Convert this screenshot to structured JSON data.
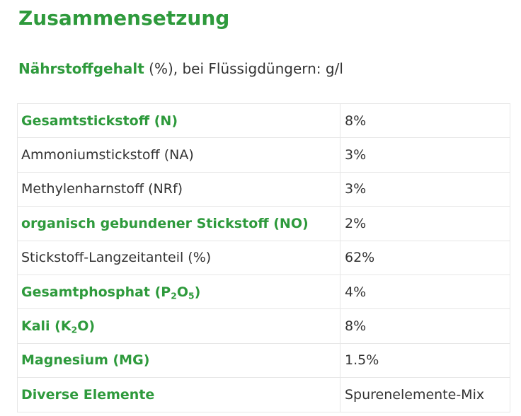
{
  "title": "Zusammensetzung",
  "subtitle": {
    "bold": "Nährstoffgehalt",
    "rest": " (%), bei Flüssigdüngern: g/l"
  },
  "rows": [
    {
      "label": "Gesamtstickstoff (N)",
      "value": "8%",
      "bold": true
    },
    {
      "label": "Ammoniumstickstoff (NA)",
      "value": "3%",
      "bold": false
    },
    {
      "label": "Methylenharnstoff (NRf)",
      "value": "3%",
      "bold": false
    },
    {
      "label": "organisch gebundener Stickstoff (NO)",
      "value": "2%",
      "bold": true
    },
    {
      "label": "Stickstoff-Langzeitanteil (%)",
      "value": "62%",
      "bold": false
    },
    {
      "label_parts": [
        "Gesamtphosphat (P",
        "2",
        "O",
        "5",
        ")"
      ],
      "value": "4%",
      "bold": true
    },
    {
      "label_parts": [
        "Kali (K",
        "2",
        "O)"
      ],
      "value": "8%",
      "bold": true
    },
    {
      "label": "Magnesium (MG)",
      "value": "1.5%",
      "bold": true
    },
    {
      "label": "Diverse Elemente",
      "value": "Spurenelemente-Mix",
      "bold": true
    }
  ],
  "colors": {
    "accent": "#2e9a3c",
    "text": "#333333",
    "border": "#e6e6e6"
  }
}
